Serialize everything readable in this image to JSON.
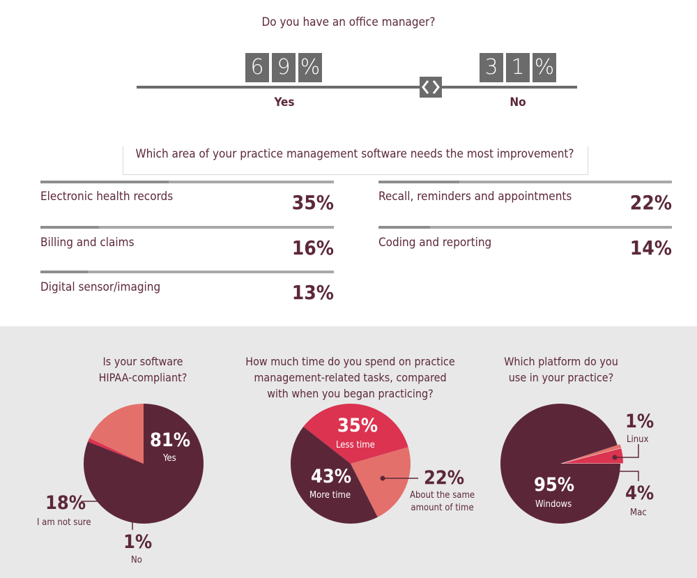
{
  "office_manager": {
    "question": "Do you have an office manager?",
    "yes_digits": [
      "6",
      "9",
      "%"
    ],
    "no_digits": [
      "3",
      "1",
      "%"
    ],
    "yes_label": "Yes",
    "no_label": "No"
  },
  "improvement": {
    "question": "Which area of your practice management software needs the most improvement?",
    "items": [
      {
        "label": "Electronic health records",
        "pct": "35%",
        "value": 35
      },
      {
        "label": "Billing and claims",
        "pct": "16%",
        "value": 16
      },
      {
        "label": "Digital sensor/imaging",
        "pct": "13%",
        "value": 13
      },
      {
        "label": "Recall, reminders and appointments",
        "pct": "22%",
        "value": 22
      },
      {
        "label": "Coding and reporting",
        "pct": "14%",
        "value": 14
      }
    ]
  },
  "pies": {
    "hipaa": {
      "title_line1": "Is your software",
      "title_line2": "HIPAA-compliant?",
      "slices": [
        {
          "pct": "81%",
          "label": "Yes"
        },
        {
          "pct": "18%",
          "label": "I am not sure"
        },
        {
          "pct": "1%",
          "label": "No"
        }
      ]
    },
    "time": {
      "title_line1": "How much time do you spend on practice",
      "title_line2": "management-related tasks, compared",
      "title_line3": "with when you began practicing?",
      "slices": [
        {
          "pct": "35%",
          "label": "Less time"
        },
        {
          "pct": "22%",
          "label_line1": "About the same",
          "label_line2": "amount of time"
        },
        {
          "pct": "43%",
          "label": "More time"
        }
      ]
    },
    "platform": {
      "title_line1": "Which platform do you",
      "title_line2": "use in your practice?",
      "slices": [
        {
          "pct": "95%",
          "label": "Windows"
        },
        {
          "pct": "1%",
          "label": "Linux"
        },
        {
          "pct": "4%",
          "label": "Mac"
        }
      ]
    }
  },
  "chart_data": [
    {
      "type": "bar",
      "title": "Do you have an office manager?",
      "categories": [
        "Yes",
        "No"
      ],
      "values": [
        69,
        31
      ]
    },
    {
      "type": "bar",
      "title": "Which area of your practice management software needs the most improvement?",
      "categories": [
        "Electronic health records",
        "Billing and claims",
        "Digital sensor/imaging",
        "Recall, reminders and appointments",
        "Coding and reporting"
      ],
      "values": [
        35,
        16,
        13,
        22,
        14
      ]
    },
    {
      "type": "pie",
      "title": "Is your software HIPAA-compliant?",
      "categories": [
        "Yes",
        "I am not sure",
        "No"
      ],
      "values": [
        81,
        18,
        1
      ]
    },
    {
      "type": "pie",
      "title": "How much time do you spend on practice management-related tasks, compared with when you began practicing?",
      "categories": [
        "Less time",
        "About the same amount of time",
        "More time"
      ],
      "values": [
        35,
        22,
        43
      ]
    },
    {
      "type": "pie",
      "title": "Which platform do you use in your practice?",
      "categories": [
        "Windows",
        "Linux",
        "Mac"
      ],
      "values": [
        95,
        1,
        4
      ]
    }
  ],
  "colors": {
    "maroon": "#5c2639",
    "salmon": "#e4706b",
    "red": "#db3350",
    "gray_box": "#6b6b6b",
    "panel": "#e8e8e8"
  }
}
